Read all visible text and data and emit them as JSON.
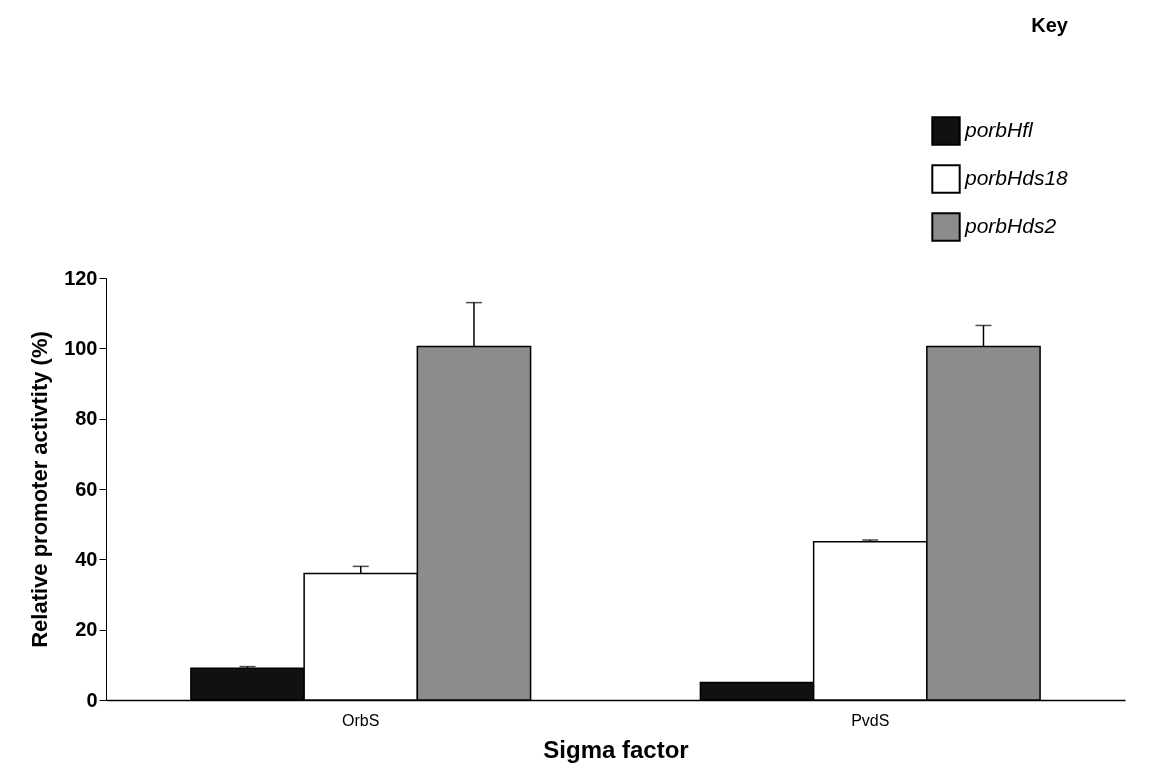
{
  "chart_data": {
    "type": "bar",
    "xlabel": "Sigma factor",
    "ylabel": "Relative promoter activtity (%)",
    "legend_title": "Key",
    "legend": "top right",
    "categories": [
      "OrbS",
      "PvdS"
    ],
    "series": [
      {
        "name": "porbHfl",
        "color": "#111111",
        "values": [
          9,
          5
        ],
        "errors": [
          [
            9,
            9.5
          ],
          null
        ]
      },
      {
        "name": "porbHds18",
        "color": "#ffffff",
        "values": [
          36,
          45
        ],
        "errors": [
          [
            36,
            38
          ],
          [
            45,
            45.5
          ]
        ]
      },
      {
        "name": "porbHds2",
        "color": "#8c8c8c",
        "values": [
          100.5,
          100.5
        ],
        "errors": [
          [
            100.5,
            113
          ],
          [
            100.5,
            106.5
          ]
        ]
      }
    ],
    "ylim": [
      0,
      120
    ],
    "yticks": [
      0,
      20,
      40,
      60,
      80,
      100,
      120
    ]
  }
}
